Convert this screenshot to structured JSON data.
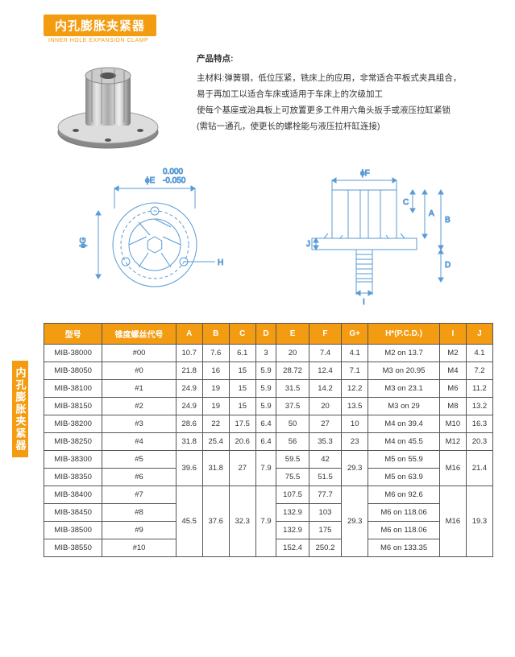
{
  "title": {
    "cn": "内孔膨胀夹紧器",
    "en": "INNER HOLE EXPANSION CLAMP"
  },
  "sideTab": "内孔膨胀夹紧器",
  "desc": {
    "heading": "产品特点:",
    "line1": "主材料:弹簧钢，低位压紧，铣床上的应用，非常适合平板式夹具组合，",
    "line2": "易于再加工以适合车床或适用于车床上的次级加工",
    "line3": "使每个基座或治具板上可放置更多工件用六角头扳手或液压拉缸紧锁",
    "line4": "(需钻一通孔，使更长的螺栓能与液压拉杆缸连接)"
  },
  "diagram": {
    "leftLabels": {
      "phiE": "ϕE",
      "tolTop": "0.000",
      "tolBot": "-0.050",
      "phiG": "ϕG",
      "H": "H"
    },
    "rightLabels": {
      "phiF": "ϕF",
      "A": "A",
      "B": "B",
      "C": "C",
      "D": "D",
      "I": "I",
      "J": "J"
    },
    "lineColor": "#5a9bd4"
  },
  "table": {
    "headers": [
      "型号",
      "锥度螺丝代号",
      "A",
      "B",
      "C",
      "D",
      "E",
      "F",
      "G+",
      "H*(P.C.D.)",
      "I",
      "J"
    ],
    "rows": [
      {
        "model": "MIB-38000",
        "code": "#00",
        "A": "10.7",
        "B": "7.6",
        "C": "6.1",
        "D": "3",
        "E": "20",
        "F": "7.4",
        "G": "4.1",
        "H": "M2 on 13.7",
        "I": "M2",
        "J": "4.1"
      },
      {
        "model": "MIB-38050",
        "code": "#0",
        "A": "21.8",
        "B": "16",
        "C": "15",
        "D": "5.9",
        "E": "28.72",
        "F": "12.4",
        "G": "7.1",
        "H": "M3 on 20.95",
        "I": "M4",
        "J": "7.2"
      },
      {
        "model": "MIB-38100",
        "code": "#1",
        "A": "24.9",
        "B": "19",
        "C": "15",
        "D": "5.9",
        "E": "31.5",
        "F": "14.2",
        "G": "12.2",
        "H": "M3 on 23.1",
        "I": "M6",
        "J": "11.2"
      },
      {
        "model": "MIB-38150",
        "code": "#2",
        "A": "24.9",
        "B": "19",
        "C": "15",
        "D": "5.9",
        "E": "37.5",
        "F": "20",
        "G": "13.5",
        "H": "M3 on 29",
        "I": "M8",
        "J": "13.2"
      },
      {
        "model": "MIB-38200",
        "code": "#3",
        "A": "28.6",
        "B": "22",
        "C": "17.5",
        "D": "6.4",
        "E": "50",
        "F": "27",
        "G": "10",
        "H": "M4 on 39.4",
        "I": "M10",
        "J": "16.3"
      },
      {
        "model": "MIB-38250",
        "code": "#4",
        "A": "31.8",
        "B": "25.4",
        "C": "20.6",
        "D": "6.4",
        "E": "56",
        "F": "35.3",
        "G": "23",
        "H": "M4 on 45.5",
        "I": "M12",
        "J": "20.3"
      },
      {
        "model": "MIB-38300",
        "code": "#5",
        "E": "59.5",
        "F": "42",
        "H": "M5 on 55.9"
      },
      {
        "model": "MIB-38350",
        "code": "#6",
        "E": "75.5",
        "F": "51.5",
        "H": "M5 on 63.9"
      },
      {
        "model": "MIB-38400",
        "code": "#7",
        "E": "107.5",
        "F": "77.7",
        "H": "M6 on 92.6"
      },
      {
        "model": "MIB-38450",
        "code": "#8",
        "E": "132.9",
        "F": "103",
        "H": "M6 on 118.06"
      },
      {
        "model": "MIB-38500",
        "code": "#9",
        "E": "132.9",
        "F": "175",
        "H": "M6 on 118.06"
      },
      {
        "model": "MIB-38550",
        "code": "#10",
        "E": "152.4",
        "F": "250.2",
        "H": "M6 on 133.35"
      }
    ],
    "merge67": {
      "A": "39.6",
      "B": "31.8",
      "C": "27",
      "D": "7.9",
      "G": "29.3",
      "I": "M16",
      "J": "21.4"
    },
    "merge8to11": {
      "A": "45.5",
      "B": "37.6",
      "C": "32.3",
      "D": "7.9",
      "G": "29.3",
      "I": "M16",
      "J": "19.3"
    }
  },
  "colors": {
    "accent": "#f39c12",
    "dim": "#5a9bd4"
  }
}
